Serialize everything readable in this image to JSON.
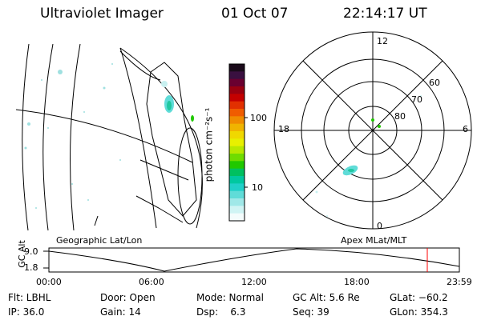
{
  "header": {
    "instrument": "Ultraviolet Imager",
    "date": "01 Oct 07",
    "time": "22:14:17 UT"
  },
  "colorbar": {
    "unit_label": "photon cm⁻²s⁻¹",
    "tick_labels": [
      "100",
      "10"
    ],
    "colors": [
      "#1a0a1a",
      "#3a1040",
      "#6a0030",
      "#9a0010",
      "#c40000",
      "#e23000",
      "#f05c00",
      "#f08c00",
      "#f0b400",
      "#f0d800",
      "#e8f000",
      "#b8e800",
      "#70dc00",
      "#20c800",
      "#00c060",
      "#00c8a0",
      "#20d0c8",
      "#60dcd8",
      "#a0e8e8",
      "#d0f4f4",
      "#f4fcfc"
    ]
  },
  "polar": {
    "hour_labels": {
      "top": "12",
      "left": "18",
      "right": "6",
      "bottom": "0"
    },
    "lat_labels": [
      "60",
      "70",
      "80"
    ]
  },
  "panel_labels": {
    "left": "Geographic Lat/Lon",
    "right": "Apex MLat/MLT"
  },
  "altitude_plot": {
    "axis_label": "GC Alt",
    "y_ticks": [
      "9.0",
      "1.8"
    ],
    "x_ticks": [
      "00:00",
      "06:00",
      "12:00",
      "18:00",
      "23:59"
    ],
    "current_time_marker": "22:14",
    "marker_color": "#ff0000"
  },
  "status": {
    "filter": "Flt: LBHL",
    "ip": "IP: 36.0",
    "door": "Door: Open",
    "gain": "Gain: 14",
    "mode": "Mode: Normal",
    "dsp": "Dsp:    6.3",
    "gc_alt": "GC Alt: 5.6 Re",
    "seq": "Seq: 39",
    "glat": "GLat: −60.2",
    "glon": "GLon: 354.3"
  }
}
